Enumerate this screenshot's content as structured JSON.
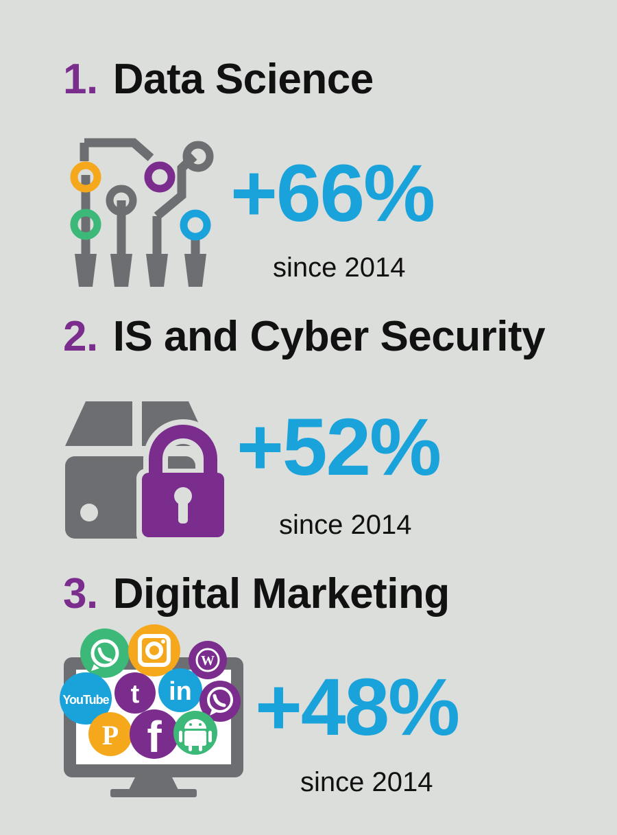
{
  "colors": {
    "background": "#dcdedb",
    "number": "#7b2d8e",
    "title": "#111111",
    "stat": "#1aa3db",
    "icon_gray": "#6d6e71",
    "purple": "#7b2d8e",
    "orange": "#f6a81c",
    "green": "#3cb878",
    "blue": "#1aa3db"
  },
  "items": [
    {
      "number": "1.",
      "title": "Data Science",
      "stat": "+66%",
      "since": "since 2014",
      "icon": "circuit-board-icon"
    },
    {
      "number": "2.",
      "title": "IS and Cyber Security",
      "stat": "+52%",
      "since": "since 2014",
      "icon": "safe-padlock-icon"
    },
    {
      "number": "3.",
      "title": "Digital Marketing",
      "stat": "+48%",
      "since": "since 2014",
      "icon": "monitor-social-media-icon"
    }
  ],
  "social_icons": {
    "youtube_label": "YouTube",
    "linkedin_label": "in",
    "facebook_label": "f",
    "pinterest_label": "P",
    "twitter_label": "t",
    "wordpress_label": "W"
  }
}
